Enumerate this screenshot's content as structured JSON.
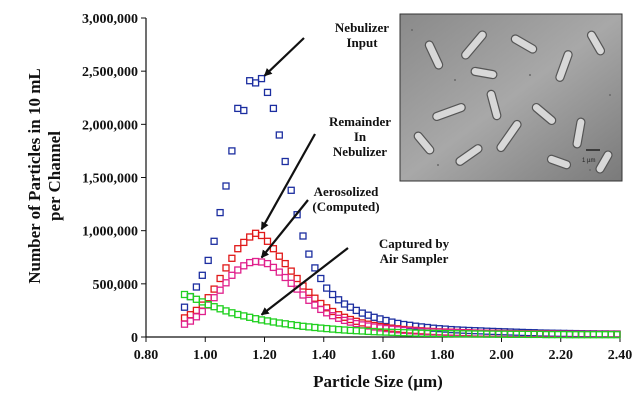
{
  "chart_data": {
    "type": "scatter",
    "xlabel": "Particle Size (µm)",
    "ylabel_lines": [
      "Number of Particles in 10 mL",
      "per Channel"
    ],
    "xlim": [
      0.8,
      2.4
    ],
    "ylim": [
      0,
      3000000
    ],
    "x_ticks": [
      "0.80",
      "1.00",
      "1.20",
      "1.40",
      "1.60",
      "1.80",
      "2.00",
      "2.20",
      "2.40"
    ],
    "y_ticks": [
      "0",
      "500,000",
      "1,000,000",
      "1,500,000",
      "2,000,000",
      "2,500,000",
      "3,000,000"
    ],
    "grid": false,
    "marker": "open-square",
    "series": [
      {
        "name": "Nebulizer Input",
        "color": "#1c2ea0",
        "x": [
          0.93,
          0.95,
          0.97,
          0.99,
          1.01,
          1.03,
          1.05,
          1.07,
          1.09,
          1.11,
          1.13,
          1.15,
          1.17,
          1.19,
          1.21,
          1.23,
          1.25,
          1.27,
          1.29,
          1.31,
          1.33,
          1.35,
          1.37,
          1.39,
          1.41,
          1.43,
          1.45,
          1.47,
          1.49,
          1.51,
          1.53,
          1.55,
          1.57,
          1.59,
          1.61,
          1.63,
          1.65,
          1.67,
          1.69,
          1.71,
          1.73,
          1.75,
          1.77,
          1.79,
          1.81,
          1.83,
          1.85,
          1.87,
          1.89,
          1.91,
          1.93,
          1.95,
          1.97,
          1.99,
          2.01,
          2.03,
          2.05,
          2.07,
          2.09,
          2.11,
          2.13,
          2.15,
          2.17,
          2.19,
          2.21,
          2.23,
          2.25,
          2.27,
          2.29,
          2.31,
          2.33,
          2.35,
          2.37,
          2.39
        ],
        "y": [
          280000,
          380000,
          470000,
          580000,
          720000,
          900000,
          1170000,
          1420000,
          1750000,
          2150000,
          2130000,
          2410000,
          2390000,
          2430000,
          2300000,
          2150000,
          1900000,
          1650000,
          1380000,
          1150000,
          950000,
          780000,
          650000,
          550000,
          460000,
          400000,
          350000,
          310000,
          280000,
          250000,
          225000,
          205000,
          185000,
          170000,
          155000,
          140000,
          128000,
          118000,
          110000,
          102000,
          95000,
          89000,
          83000,
          78000,
          74000,
          70000,
          67000,
          64000,
          61000,
          59000,
          57000,
          55000,
          53000,
          51000,
          49000,
          47000,
          45000,
          43000,
          41000,
          40000,
          38000,
          37000,
          36000,
          35000,
          34000,
          33000,
          32000,
          31000,
          30000,
          30000,
          29000,
          29000,
          28000,
          28000
        ]
      },
      {
        "name": "Remainder In Nebulizer",
        "color": "#e01818",
        "x": [
          0.93,
          0.95,
          0.97,
          0.99,
          1.01,
          1.03,
          1.05,
          1.07,
          1.09,
          1.11,
          1.13,
          1.15,
          1.17,
          1.19,
          1.21,
          1.23,
          1.25,
          1.27,
          1.29,
          1.31,
          1.33,
          1.35,
          1.37,
          1.39,
          1.41,
          1.43,
          1.45,
          1.47,
          1.49,
          1.51,
          1.53,
          1.55,
          1.57,
          1.59,
          1.61,
          1.63,
          1.65,
          1.67,
          1.69,
          1.71,
          1.73,
          1.75,
          1.77,
          1.79,
          1.81,
          1.83,
          1.85,
          1.87,
          1.89,
          1.91,
          1.93,
          1.95,
          1.97,
          1.99,
          2.01,
          2.03,
          2.05,
          2.07,
          2.09,
          2.11,
          2.13,
          2.15,
          2.17,
          2.19,
          2.21,
          2.23,
          2.25,
          2.27,
          2.29,
          2.31,
          2.33,
          2.35,
          2.37,
          2.39
        ],
        "y": [
          180000,
          210000,
          250000,
          300000,
          370000,
          450000,
          550000,
          650000,
          740000,
          830000,
          890000,
          940000,
          975000,
          955000,
          900000,
          830000,
          760000,
          690000,
          620000,
          550000,
          480000,
          420000,
          365000,
          315000,
          275000,
          240000,
          210000,
          185000,
          165000,
          148000,
          133000,
          120000,
          108000,
          98000,
          90000,
          83000,
          77000,
          71000,
          66000,
          62000,
          58000,
          55000,
          52000,
          49000,
          47000,
          45000,
          43000,
          41000,
          40000,
          38000,
          37000,
          36000,
          35000,
          34000,
          33000,
          32000,
          31000,
          30000,
          30000,
          29000,
          29000,
          28000,
          28000,
          27000,
          27000,
          27000,
          26000,
          26000,
          26000,
          25000,
          25000,
          25000,
          25000,
          25000
        ]
      },
      {
        "name": "Aerosolized (Computed)",
        "color": "#e0208c",
        "x": [
          0.93,
          0.95,
          0.97,
          0.99,
          1.01,
          1.03,
          1.05,
          1.07,
          1.09,
          1.11,
          1.13,
          1.15,
          1.17,
          1.19,
          1.21,
          1.23,
          1.25,
          1.27,
          1.29,
          1.31,
          1.33,
          1.35,
          1.37,
          1.39,
          1.41,
          1.43,
          1.45,
          1.47,
          1.49,
          1.51,
          1.53,
          1.55,
          1.57,
          1.59,
          1.61,
          1.63,
          1.65,
          1.67,
          1.69,
          1.71,
          1.73,
          1.75,
          1.77,
          1.79,
          1.81,
          1.83,
          1.85,
          1.87,
          1.89,
          1.91,
          1.93,
          1.95,
          1.97,
          1.99,
          2.01,
          2.03,
          2.05,
          2.07,
          2.09,
          2.11,
          2.13,
          2.15,
          2.17,
          2.19,
          2.21,
          2.23,
          2.25,
          2.27,
          2.29,
          2.31,
          2.33,
          2.35,
          2.37,
          2.39
        ],
        "y": [
          120000,
          150000,
          190000,
          240000,
          300000,
          370000,
          440000,
          510000,
          580000,
          630000,
          670000,
          700000,
          710000,
          705000,
          690000,
          655000,
          610000,
          560000,
          505000,
          450000,
          395000,
          345000,
          300000,
          260000,
          228000,
          200000,
          176000,
          156000,
          140000,
          126000,
          114000,
          103000,
          94000,
          86000,
          79000,
          73000,
          68000,
          63000,
          59000,
          56000,
          53000,
          50000,
          48000,
          46000,
          44000,
          42000,
          41000,
          39000,
          38000,
          37000,
          36000,
          35000,
          34000,
          33000,
          32000,
          32000,
          31000,
          30000,
          30000,
          29000,
          29000,
          28000,
          28000,
          28000,
          27000,
          27000,
          27000,
          26000,
          26000,
          26000,
          26000,
          25000,
          25000,
          25000
        ]
      },
      {
        "name": "Captured by Air Sampler",
        "color": "#1fd01f",
        "x": [
          0.93,
          0.95,
          0.97,
          0.99,
          1.01,
          1.03,
          1.05,
          1.07,
          1.09,
          1.11,
          1.13,
          1.15,
          1.17,
          1.19,
          1.21,
          1.23,
          1.25,
          1.27,
          1.29,
          1.31,
          1.33,
          1.35,
          1.37,
          1.39,
          1.41,
          1.43,
          1.45,
          1.47,
          1.49,
          1.51,
          1.53,
          1.55,
          1.57,
          1.59,
          1.61,
          1.63,
          1.65,
          1.67,
          1.69,
          1.71,
          1.73,
          1.75,
          1.77,
          1.79,
          1.81,
          1.83,
          1.85,
          1.87,
          1.89,
          1.91,
          1.93,
          1.95,
          1.97,
          1.99,
          2.01,
          2.03,
          2.05,
          2.07,
          2.09,
          2.11,
          2.13,
          2.15,
          2.17,
          2.19,
          2.21,
          2.23,
          2.25,
          2.27,
          2.29,
          2.31,
          2.33,
          2.35,
          2.37,
          2.39
        ],
        "y": [
          400000,
          380000,
          355000,
          330000,
          305000,
          285000,
          265000,
          245000,
          228000,
          212000,
          198000,
          185000,
          172000,
          161000,
          151000,
          141000,
          132000,
          124000,
          116000,
          108000,
          101000,
          95000,
          89000,
          84000,
          79000,
          74000,
          70000,
          66000,
          62000,
          59000,
          56000,
          53000,
          50000,
          48000,
          46000,
          44000,
          42000,
          40000,
          39000,
          37000,
          36000,
          35000,
          34000,
          33000,
          32000,
          31000,
          30000,
          30000,
          29000,
          28000,
          28000,
          27000,
          27000,
          26000,
          26000,
          25000,
          25000,
          25000,
          24000,
          24000,
          24000,
          23000,
          23000,
          23000,
          23000,
          22000,
          22000,
          22000,
          22000,
          22000,
          22000,
          22000,
          22000,
          22000
        ]
      }
    ],
    "annotations": [
      {
        "name": "Nebulizer Input",
        "lines": [
          "Nebulizer",
          "Input"
        ],
        "points_to": [
          1.18,
          2420000
        ]
      },
      {
        "name": "Remainder In Nebulizer",
        "lines": [
          "Remainder",
          "In",
          "Nebulizer"
        ],
        "points_to": [
          1.17,
          975000
        ]
      },
      {
        "name": "Aerosolized (Computed)",
        "lines": [
          "Aerosolized",
          "(Computed)"
        ],
        "points_to": [
          1.17,
          710000
        ]
      },
      {
        "name": "Captured by Air Sampler",
        "lines": [
          "Captured by",
          "Air Sampler"
        ],
        "points_to": [
          1.17,
          172000
        ]
      }
    ],
    "inset": {
      "kind": "micrograph",
      "scale_label": "1 µm"
    }
  }
}
